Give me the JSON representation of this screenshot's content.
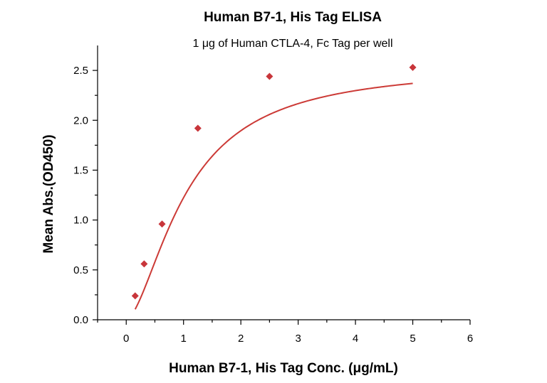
{
  "chart_data": {
    "type": "scatter",
    "title": "Human B7-1, His Tag ELISA",
    "subtitle": "1 μg of Human CTLA-4, Fc Tag per well",
    "xlabel": "Human B7-1, His Tag Conc. (μg/mL)",
    "ylabel": "Mean Abs.(OD450)",
    "xlim": [
      -0.5,
      6
    ],
    "ylim": [
      0,
      2.75
    ],
    "x_ticks": [
      0,
      1,
      2,
      3,
      4,
      5,
      6
    ],
    "y_ticks": [
      0.0,
      0.5,
      1.0,
      1.5,
      2.0,
      2.5
    ],
    "x_tick_labels": [
      "0",
      "1",
      "2",
      "3",
      "4",
      "5",
      "6"
    ],
    "y_tick_labels": [
      "0.0",
      "0.5",
      "1.0",
      "1.5",
      "2.0",
      "2.5"
    ],
    "series": [
      {
        "x": [
          0.156,
          0.3125,
          0.625,
          1.25,
          2.5,
          5.0
        ],
        "y": [
          0.24,
          0.56,
          0.96,
          1.92,
          2.44,
          2.53
        ],
        "color": "#c8353a",
        "marker": "diamond",
        "fit": "four-parameter logistic curve"
      }
    ],
    "grid": false,
    "legend": "none"
  }
}
